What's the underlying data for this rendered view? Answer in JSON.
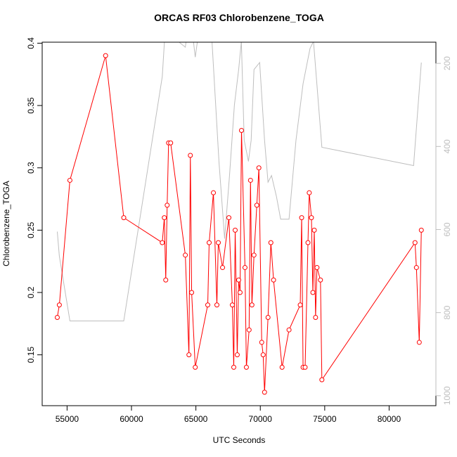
{
  "chart_data": {
    "type": "line",
    "title": "ORCAS RF03 Chlorobenzene_TOGA",
    "x_label": "UTC Seconds",
    "y_label": "Chlorobenzene_TOGA",
    "xlim": [
      53068,
      83632
    ],
    "xticks": [
      55000,
      60000,
      65000,
      70000,
      75000,
      80000
    ],
    "ylim": [
      0.1092,
      0.4008
    ],
    "yticks": [
      0.15,
      0.2,
      0.25,
      0.3,
      0.35,
      0.4
    ],
    "y2lim": [
      1024,
      149
    ],
    "y2ticks": [
      200,
      400,
      600,
      800,
      1000
    ],
    "series": [
      {
        "color": "#bebebe",
        "axis": "y2",
        "x": [
          54240,
          54400,
          55220,
          59400,
          62390,
          62610,
          64180,
          64350,
          64620,
          64950,
          65270,
          65980,
          66250,
          66790,
          67230,
          67610,
          67990,
          68320,
          68530,
          68750,
          69080,
          69290,
          69510,
          69950,
          70330,
          70600,
          70870,
          71250,
          71580,
          72230,
          72770,
          73320,
          73860,
          74130,
          74780,
          81900,
          82500
        ],
        "values": [
          605,
          664,
          820,
          820,
          232,
          122,
          161,
          122,
          96,
          185,
          113,
          105,
          147,
          436,
          622,
          470,
          300,
          215,
          147,
          385,
          436,
          385,
          215,
          198,
          385,
          486,
          470,
          520,
          575,
          575,
          385,
          249,
          164,
          147,
          402,
          446,
          198
        ]
      },
      {
        "color": "#ff0000",
        "x": [
          54240,
          54400,
          55220,
          57990,
          59400,
          62390,
          62550,
          62660,
          62770,
          62880,
          63040,
          64180,
          64460,
          64570,
          64670,
          64950,
          65920,
          66030,
          66360,
          66630,
          66740,
          67070,
          67560,
          67830,
          67940,
          68050,
          68210,
          68320,
          68430,
          68540,
          68810,
          68920,
          69130,
          69240,
          69350,
          69510,
          69730,
          69890,
          70110,
          70220,
          70330,
          70600,
          70820,
          71030,
          71690,
          72230,
          73100,
          73210,
          73320,
          73480,
          73700,
          73800,
          73970,
          74080,
          74190,
          74290,
          74400,
          74670,
          74780,
          82010,
          82120,
          82340,
          82500
        ],
        "values": [
          0.18,
          0.19,
          0.29,
          0.39,
          0.26,
          0.24,
          0.26,
          0.21,
          0.27,
          0.32,
          0.32,
          0.23,
          0.15,
          0.31,
          0.2,
          0.14,
          0.19,
          0.24,
          0.28,
          0.19,
          0.24,
          0.22,
          0.26,
          0.19,
          0.14,
          0.25,
          0.15,
          0.21,
          0.2,
          0.33,
          0.22,
          0.14,
          0.17,
          0.29,
          0.19,
          0.23,
          0.27,
          0.3,
          0.16,
          0.15,
          0.12,
          0.18,
          0.24,
          0.21,
          0.14,
          0.17,
          0.19,
          0.26,
          0.14,
          0.14,
          0.24,
          0.28,
          0.26,
          0.2,
          0.25,
          0.18,
          0.22,
          0.21,
          0.13,
          0.24,
          0.22,
          0.16,
          0.25
        ]
      }
    ]
  }
}
